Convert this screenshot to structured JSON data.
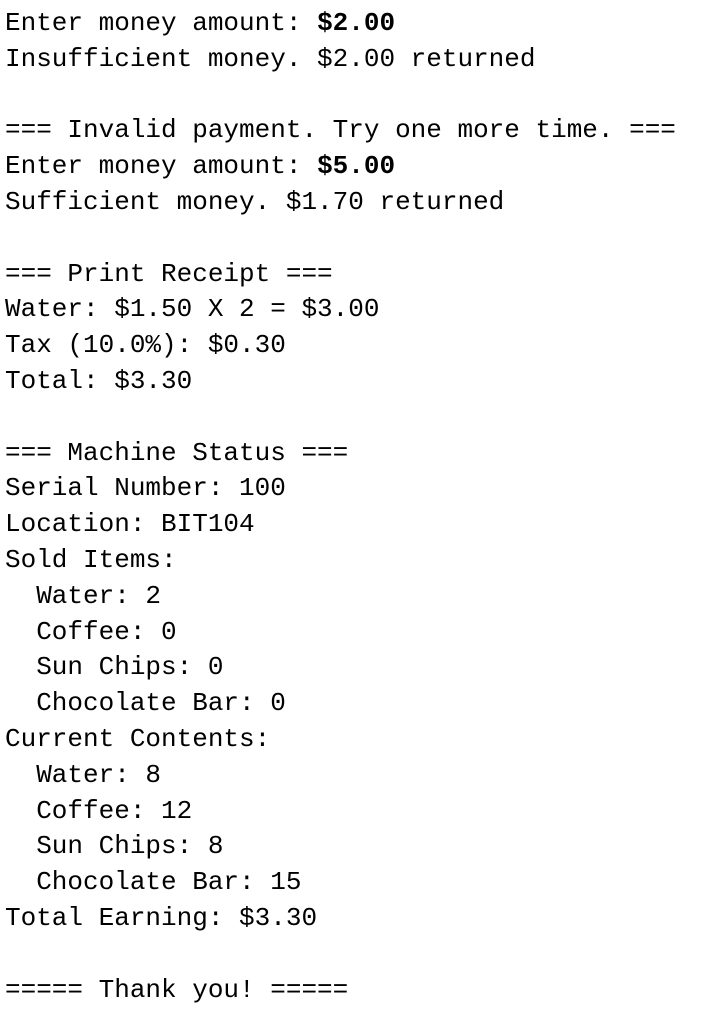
{
  "console": {
    "lines": [
      {
        "text": "Enter money amount: ",
        "input": "$2.00"
      },
      {
        "text": "Insufficient money. $2.00 returned"
      },
      {
        "text": ""
      },
      {
        "text": "=== Invalid payment. Try one more time. ==="
      },
      {
        "text": "Enter money amount: ",
        "input": "$5.00"
      },
      {
        "text": "Sufficient money. $1.70 returned"
      },
      {
        "text": ""
      },
      {
        "text": "=== Print Receipt ==="
      },
      {
        "text": "Water: $1.50 X 2 = $3.00"
      },
      {
        "text": "Tax (10.0%): $0.30"
      },
      {
        "text": "Total: $3.30"
      },
      {
        "text": ""
      },
      {
        "text": "=== Machine Status ==="
      },
      {
        "text": "Serial Number: 100"
      },
      {
        "text": "Location: BIT104"
      },
      {
        "text": "Sold Items:"
      },
      {
        "text": "  Water: 2"
      },
      {
        "text": "  Coffee: 0"
      },
      {
        "text": "  Sun Chips: 0"
      },
      {
        "text": "  Chocolate Bar: 0"
      },
      {
        "text": "Current Contents:"
      },
      {
        "text": "  Water: 8"
      },
      {
        "text": "  Coffee: 12"
      },
      {
        "text": "  Sun Chips: 8"
      },
      {
        "text": "  Chocolate Bar: 15"
      },
      {
        "text": "Total Earning: $3.30"
      },
      {
        "text": ""
      },
      {
        "text": "===== Thank you! ====="
      }
    ]
  }
}
